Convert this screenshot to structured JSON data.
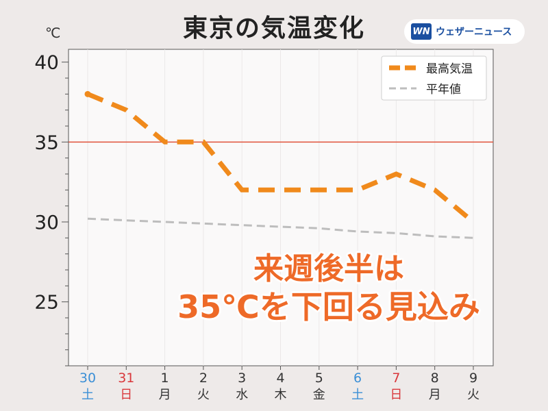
{
  "title": "東京の気温変化",
  "unit": "℃",
  "brand": {
    "logo": "WN",
    "text": "ウェザーニュース"
  },
  "headline": {
    "line1": "来週後半は",
    "line2": "35℃を下回る見込み"
  },
  "colors": {
    "max_temp": "#f08a1c",
    "normal": "#bdbdbd",
    "threshold": "#e0503a",
    "weekday": "#333333",
    "saturday": "#3b8fd6",
    "sunday": "#d9373b"
  },
  "chart_data": {
    "type": "line",
    "title": "東京の気温変化",
    "ylabel": "℃",
    "ylim": [
      21,
      40.8
    ],
    "yticks": [
      25,
      30,
      35,
      40
    ],
    "grid": false,
    "legend_position": "top-right",
    "reference_line": {
      "y": 35
    },
    "categories": [
      {
        "date": "30",
        "day": "土",
        "kind": "saturday"
      },
      {
        "date": "31",
        "day": "日",
        "kind": "sunday"
      },
      {
        "date": "1",
        "day": "月",
        "kind": "weekday"
      },
      {
        "date": "2",
        "day": "火",
        "kind": "weekday"
      },
      {
        "date": "3",
        "day": "水",
        "kind": "weekday"
      },
      {
        "date": "4",
        "day": "木",
        "kind": "weekday"
      },
      {
        "date": "5",
        "day": "金",
        "kind": "weekday"
      },
      {
        "date": "6",
        "day": "土",
        "kind": "saturday"
      },
      {
        "date": "7",
        "day": "日",
        "kind": "sunday"
      },
      {
        "date": "8",
        "day": "月",
        "kind": "weekday"
      },
      {
        "date": "9",
        "day": "火",
        "kind": "weekday"
      }
    ],
    "series": [
      {
        "name": "最高気温",
        "values": [
          38,
          37,
          35,
          35,
          32,
          32,
          32,
          32,
          33,
          32,
          30
        ]
      },
      {
        "name": "平年値",
        "values": [
          30.2,
          30.1,
          30.0,
          29.9,
          29.8,
          29.7,
          29.6,
          29.4,
          29.3,
          29.1,
          29.0
        ]
      }
    ]
  }
}
